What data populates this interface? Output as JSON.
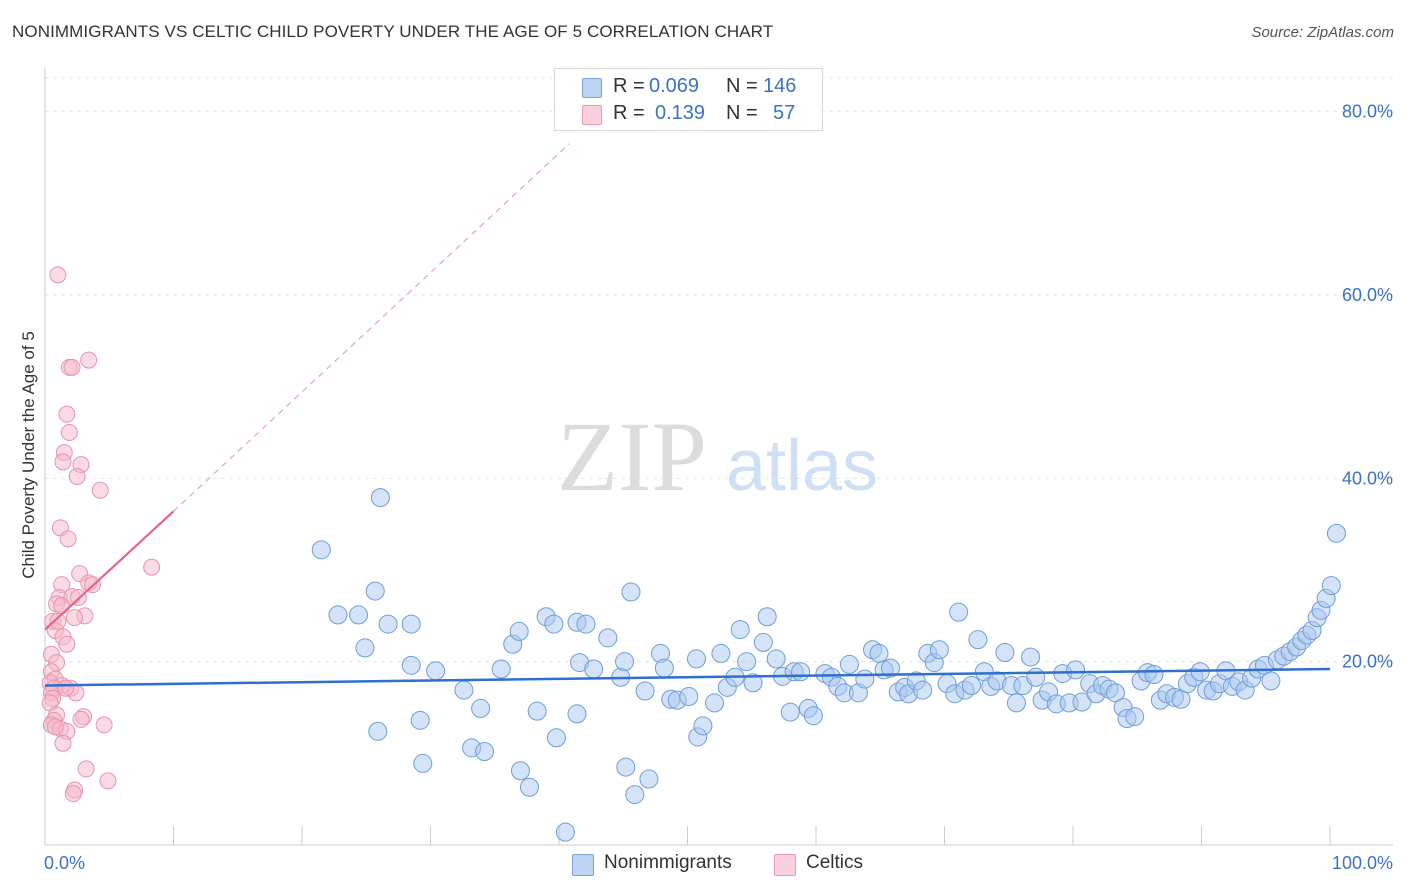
{
  "header": {
    "title": "NONIMMIGRANTS VS CELTIC CHILD POVERTY UNDER THE AGE OF 5 CORRELATION CHART",
    "source": "Source: ZipAtlas.com"
  },
  "legend": {
    "rows": [
      {
        "r_label": "R =",
        "r_value": "0.069",
        "n_label": "N =",
        "n_value": "146",
        "color": "#a9c8f0"
      },
      {
        "r_label": "R =",
        "r_value": "0.139",
        "n_label": "N =",
        "n_value": "57",
        "color": "#f5b8ca"
      }
    ]
  },
  "bottom_legend": {
    "items": [
      {
        "label": "Nonimmigrants",
        "color": "#a9c8f0"
      },
      {
        "label": "Celtics",
        "color": "#f5b8ca"
      }
    ]
  },
  "watermark": {
    "zip": "ZIP",
    "atlas": "atlas"
  },
  "chart_data": {
    "type": "scatter",
    "title": "NONIMMIGRANTS VS CELTIC CHILD POVERTY UNDER THE AGE OF 5 CORRELATION CHART",
    "xlabel": "",
    "ylabel": "Child Poverty Under the Age of 5",
    "xlim": [
      0,
      100
    ],
    "ylim": [
      0,
      84
    ],
    "x_tick_labels": [
      "0.0%",
      "100.0%"
    ],
    "y_ticks": [
      20,
      40,
      60,
      80
    ],
    "y_tick_labels": [
      "20.0%",
      "40.0%",
      "60.0%",
      "80.0%"
    ],
    "grid": true,
    "legend_position": "top-center",
    "colors": {
      "series1": "#a9c8f0",
      "series1_line": "#2f6fce",
      "series2": "#f5b8ca",
      "series2_line": "#e8638e",
      "axis_text": "#3b72c7"
    },
    "series": [
      {
        "name": "Nonimmigrants",
        "trend": {
          "x": [
            0,
            100
          ],
          "y": [
            17.4,
            19.2
          ]
        },
        "points": [
          [
            21.5,
            32.2
          ],
          [
            26.1,
            37.9
          ],
          [
            25.7,
            27.7
          ],
          [
            24.4,
            25.1
          ],
          [
            22.8,
            25.1
          ],
          [
            24.9,
            21.5
          ],
          [
            25.9,
            12.4
          ],
          [
            28.5,
            19.6
          ],
          [
            26.7,
            24.1
          ],
          [
            28.5,
            24.1
          ],
          [
            29.2,
            13.6
          ],
          [
            30.4,
            19.0
          ],
          [
            29.4,
            8.9
          ],
          [
            32.6,
            16.9
          ],
          [
            33.2,
            10.6
          ],
          [
            34.2,
            10.2
          ],
          [
            33.9,
            14.9
          ],
          [
            35.5,
            19.2
          ],
          [
            36.4,
            21.9
          ],
          [
            36.9,
            23.3
          ],
          [
            37.0,
            8.1
          ],
          [
            37.7,
            6.3
          ],
          [
            38.3,
            14.6
          ],
          [
            39.0,
            24.9
          ],
          [
            39.6,
            24.1
          ],
          [
            39.8,
            11.7
          ],
          [
            40.5,
            1.4
          ],
          [
            41.4,
            24.3
          ],
          [
            41.6,
            19.9
          ],
          [
            41.4,
            14.3
          ],
          [
            42.1,
            24.1
          ],
          [
            42.7,
            19.2
          ],
          [
            43.8,
            22.6
          ],
          [
            44.8,
            18.3
          ],
          [
            45.1,
            20.0
          ],
          [
            45.6,
            27.6
          ],
          [
            45.2,
            8.5
          ],
          [
            45.9,
            5.5
          ],
          [
            46.7,
            16.8
          ],
          [
            47.0,
            7.2
          ],
          [
            47.9,
            20.9
          ],
          [
            48.2,
            19.3
          ],
          [
            48.7,
            15.9
          ],
          [
            49.2,
            15.8
          ],
          [
            50.1,
            16.2
          ],
          [
            50.7,
            20.3
          ],
          [
            50.8,
            11.8
          ],
          [
            51.2,
            13.0
          ],
          [
            52.1,
            15.5
          ],
          [
            52.6,
            20.9
          ],
          [
            53.1,
            17.2
          ],
          [
            53.7,
            18.3
          ],
          [
            54.1,
            23.5
          ],
          [
            54.6,
            20.0
          ],
          [
            55.1,
            17.7
          ],
          [
            55.9,
            22.1
          ],
          [
            56.2,
            24.9
          ],
          [
            56.9,
            20.3
          ],
          [
            57.4,
            18.4
          ],
          [
            58.0,
            14.5
          ],
          [
            58.3,
            18.9
          ],
          [
            58.8,
            18.9
          ],
          [
            59.4,
            14.9
          ],
          [
            59.8,
            14.1
          ],
          [
            60.7,
            18.7
          ],
          [
            61.2,
            18.3
          ],
          [
            61.7,
            17.3
          ],
          [
            62.2,
            16.6
          ],
          [
            62.6,
            19.7
          ],
          [
            63.3,
            16.6
          ],
          [
            63.8,
            18.1
          ],
          [
            64.4,
            21.3
          ],
          [
            64.9,
            20.9
          ],
          [
            65.3,
            19.1
          ],
          [
            65.8,
            19.3
          ],
          [
            66.4,
            16.7
          ],
          [
            66.9,
            17.2
          ],
          [
            67.2,
            16.5
          ],
          [
            67.8,
            17.9
          ],
          [
            68.3,
            16.9
          ],
          [
            68.7,
            20.9
          ],
          [
            69.2,
            19.9
          ],
          [
            69.6,
            21.3
          ],
          [
            70.2,
            17.6
          ],
          [
            70.8,
            16.5
          ],
          [
            71.1,
            25.4
          ],
          [
            71.6,
            16.9
          ],
          [
            72.1,
            17.4
          ],
          [
            72.6,
            22.4
          ],
          [
            73.1,
            18.9
          ],
          [
            73.6,
            17.3
          ],
          [
            74.1,
            17.9
          ],
          [
            74.7,
            21.0
          ],
          [
            75.2,
            17.4
          ],
          [
            75.6,
            15.5
          ],
          [
            76.1,
            17.4
          ],
          [
            76.7,
            20.5
          ],
          [
            77.1,
            18.3
          ],
          [
            77.6,
            15.8
          ],
          [
            78.1,
            16.7
          ],
          [
            78.7,
            15.4
          ],
          [
            79.2,
            18.7
          ],
          [
            79.7,
            15.5
          ],
          [
            80.2,
            19.1
          ],
          [
            80.7,
            15.6
          ],
          [
            81.3,
            17.6
          ],
          [
            81.8,
            16.5
          ],
          [
            82.3,
            17.4
          ],
          [
            82.8,
            17.0
          ],
          [
            83.3,
            16.6
          ],
          [
            83.9,
            15.0
          ],
          [
            84.2,
            13.8
          ],
          [
            84.8,
            14.0
          ],
          [
            85.3,
            17.9
          ],
          [
            85.8,
            18.8
          ],
          [
            86.3,
            18.6
          ],
          [
            86.8,
            15.8
          ],
          [
            87.3,
            16.5
          ],
          [
            87.9,
            16.1
          ],
          [
            88.4,
            15.9
          ],
          [
            88.9,
            17.6
          ],
          [
            89.4,
            18.3
          ],
          [
            89.9,
            18.9
          ],
          [
            90.4,
            16.9
          ],
          [
            90.9,
            16.8
          ],
          [
            91.4,
            17.6
          ],
          [
            91.9,
            19.0
          ],
          [
            92.4,
            17.3
          ],
          [
            92.9,
            17.8
          ],
          [
            93.4,
            16.9
          ],
          [
            93.9,
            18.2
          ],
          [
            94.4,
            19.2
          ],
          [
            94.9,
            19.6
          ],
          [
            95.4,
            17.9
          ],
          [
            95.9,
            20.2
          ],
          [
            96.4,
            20.6
          ],
          [
            96.9,
            21.1
          ],
          [
            97.4,
            21.6
          ],
          [
            97.8,
            22.3
          ],
          [
            98.2,
            22.9
          ],
          [
            98.6,
            23.4
          ],
          [
            99.0,
            24.8
          ],
          [
            99.3,
            25.6
          ],
          [
            99.7,
            26.9
          ],
          [
            100.1,
            28.3
          ],
          [
            100.5,
            34.0
          ]
        ]
      },
      {
        "name": "Celtics",
        "trend": {
          "x": [
            0,
            10
          ],
          "y": [
            23.5,
            36.4
          ]
        },
        "trend_extension": {
          "x": [
            10,
            40.8
          ],
          "y": [
            36.4,
            76.5
          ]
        },
        "points": [
          [
            1.0,
            62.2
          ],
          [
            3.4,
            52.9
          ],
          [
            1.9,
            52.1
          ],
          [
            2.1,
            52.1
          ],
          [
            1.7,
            47.0
          ],
          [
            1.9,
            45.0
          ],
          [
            1.5,
            42.8
          ],
          [
            1.4,
            41.8
          ],
          [
            2.8,
            41.5
          ],
          [
            2.5,
            40.2
          ],
          [
            4.3,
            38.7
          ],
          [
            8.3,
            30.3
          ],
          [
            1.2,
            34.6
          ],
          [
            1.8,
            33.4
          ],
          [
            2.7,
            29.6
          ],
          [
            3.4,
            28.6
          ],
          [
            3.7,
            28.4
          ],
          [
            1.3,
            28.4
          ],
          [
            1.1,
            27.0
          ],
          [
            2.1,
            27.1
          ],
          [
            0.9,
            26.3
          ],
          [
            1.3,
            26.1
          ],
          [
            0.6,
            24.4
          ],
          [
            3.1,
            25.0
          ],
          [
            2.3,
            24.8
          ],
          [
            0.8,
            23.4
          ],
          [
            1.4,
            22.7
          ],
          [
            1.7,
            21.9
          ],
          [
            0.5,
            20.8
          ],
          [
            0.9,
            19.9
          ],
          [
            0.5,
            18.9
          ],
          [
            0.8,
            18.1
          ],
          [
            0.4,
            17.7
          ],
          [
            1.3,
            17.4
          ],
          [
            0.7,
            17.1
          ],
          [
            2.0,
            17.1
          ],
          [
            2.4,
            16.6
          ],
          [
            0.5,
            16.6
          ],
          [
            0.6,
            16.0
          ],
          [
            0.4,
            15.5
          ],
          [
            0.9,
            14.2
          ],
          [
            3.0,
            14.0
          ],
          [
            2.8,
            13.7
          ],
          [
            0.7,
            13.6
          ],
          [
            0.5,
            13.1
          ],
          [
            1.2,
            12.7
          ],
          [
            1.7,
            12.4
          ],
          [
            4.6,
            13.1
          ],
          [
            1.4,
            11.1
          ],
          [
            3.2,
            8.3
          ],
          [
            4.9,
            7.0
          ],
          [
            2.3,
            6.0
          ],
          [
            2.2,
            5.6
          ],
          [
            1.6,
            17.1
          ],
          [
            1.0,
            24.4
          ],
          [
            0.8,
            12.9
          ],
          [
            2.6,
            27.0
          ]
        ]
      }
    ]
  }
}
